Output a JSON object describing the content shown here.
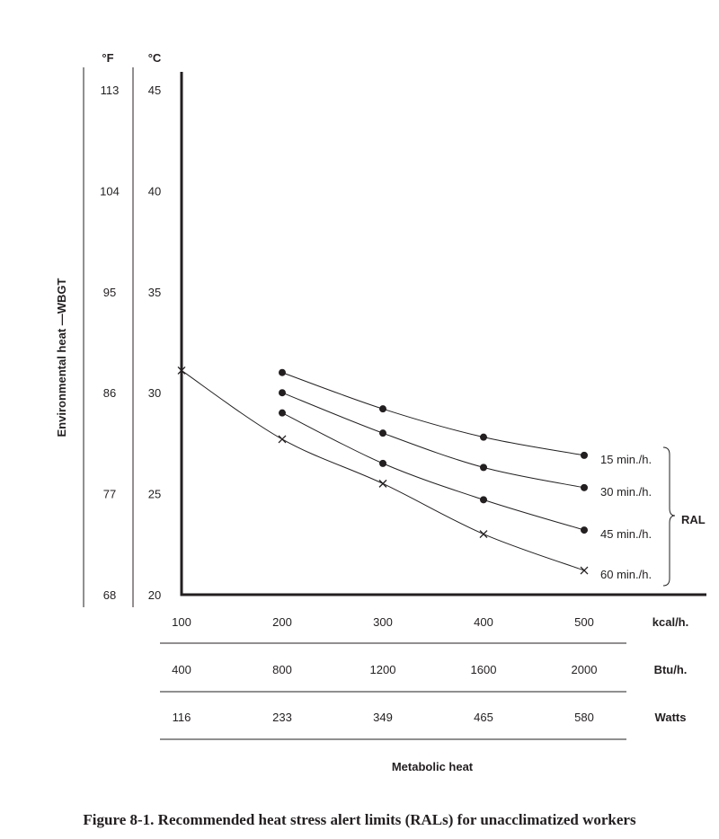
{
  "caption": "Figure 8-1. Recommended heat stress alert limits (RALs) for unacclimatized workers",
  "chart_data": {
    "type": "line",
    "title": "",
    "ylabel": "Environmental heat —WBGT",
    "xlabel": "Metabolic heat",
    "y_axis_c": {
      "unit": "°C",
      "ticks": [
        "45",
        "40",
        "35",
        "30",
        "25",
        "20"
      ],
      "ylim": [
        20,
        45
      ]
    },
    "y_axis_f": {
      "unit": "°F",
      "ticks": [
        "113",
        "104",
        "95",
        "86",
        "77",
        "68"
      ]
    },
    "x_axes": [
      {
        "unit": "kcal/h.",
        "ticks": [
          "100",
          "200",
          "300",
          "400",
          "500"
        ]
      },
      {
        "unit": "Btu/h.",
        "ticks": [
          "400",
          "800",
          "1200",
          "1600",
          "2000"
        ]
      },
      {
        "unit": "Watts",
        "ticks": [
          "116",
          "233",
          "349",
          "465",
          "580"
        ]
      }
    ],
    "xlim": [
      100,
      500
    ],
    "group_label": "RAL",
    "series": [
      {
        "name": "15 min./h.",
        "marker": "dot",
        "x": [
          200,
          300,
          400,
          500
        ],
        "y": [
          31.0,
          29.2,
          27.8,
          26.9
        ]
      },
      {
        "name": "30 min./h.",
        "marker": "dot",
        "x": [
          200,
          300,
          400,
          500
        ],
        "y": [
          30.0,
          28.0,
          26.3,
          25.3
        ]
      },
      {
        "name": "45 min./h.",
        "marker": "dot",
        "x": [
          200,
          300,
          400,
          500
        ],
        "y": [
          29.0,
          26.5,
          24.7,
          23.2
        ]
      },
      {
        "name": "60 min./h.",
        "marker": "cross",
        "x": [
          100,
          200,
          300,
          400,
          500
        ],
        "y": [
          31.1,
          27.7,
          25.5,
          23.0,
          21.2
        ]
      }
    ]
  }
}
